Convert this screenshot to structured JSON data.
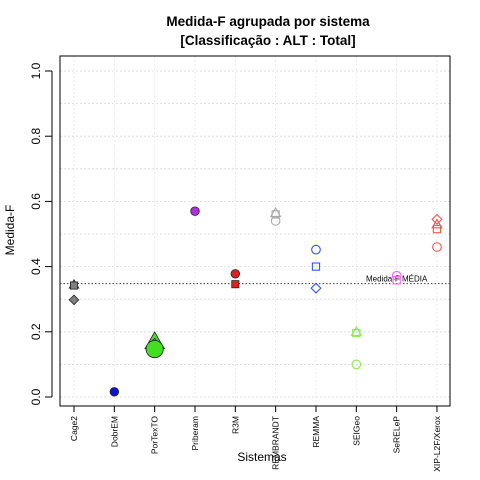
{
  "chart_data": {
    "type": "scatter",
    "title": "Medida-F agrupada por sistema",
    "subtitle": "[Classificação : ALT : Total]",
    "xlabel": "Sistemas",
    "ylabel": "Medida-F",
    "ylim": [
      0.0,
      1.0
    ],
    "yticks": [
      "0.0",
      "0.2",
      "0.4",
      "0.6",
      "0.8",
      "1.0"
    ],
    "grid": true,
    "categories": [
      "Cage2",
      "DobrEM",
      "PorTexTO",
      "Priberam",
      "R3M",
      "REMBRANDT",
      "REMMA",
      "SEIGeo",
      "SeRELeP",
      "XIP-L2F/Xerox"
    ],
    "reference_line": {
      "label": "Medida-F MÉDIA",
      "value": 0.348
    },
    "points": [
      {
        "category": "Cage2",
        "y": 0.345,
        "shape": "triangle",
        "color": "#808080",
        "filled": true
      },
      {
        "category": "Cage2",
        "y": 0.342,
        "shape": "square",
        "color": "#808080",
        "filled": true
      },
      {
        "category": "Cage2",
        "y": 0.298,
        "shape": "diamond",
        "color": "#808080",
        "filled": true
      },
      {
        "category": "DobrEM",
        "y": 0.016,
        "shape": "circle",
        "color": "#1010e0",
        "filled": true
      },
      {
        "category": "PorTexTO",
        "y": 0.17,
        "shape": "triangle",
        "color": "#44dd22",
        "filled": true,
        "large": true
      },
      {
        "category": "PorTexTO",
        "y": 0.15,
        "shape": "diamond",
        "color": "#44dd22",
        "filled": true,
        "large": true
      },
      {
        "category": "PorTexTO",
        "y": 0.147,
        "shape": "circle",
        "color": "#44dd22",
        "filled": true,
        "large": true
      },
      {
        "category": "Priberam",
        "y": 0.57,
        "shape": "circle",
        "color": "#b030e0",
        "filled": true
      },
      {
        "category": "R3M",
        "y": 0.378,
        "shape": "circle",
        "color": "#dd2222",
        "filled": true
      },
      {
        "category": "R3M",
        "y": 0.346,
        "shape": "square",
        "color": "#dd2222",
        "filled": true
      },
      {
        "category": "REMBRANDT",
        "y": 0.565,
        "shape": "triangle",
        "color": "#aaaaaa",
        "filled": false
      },
      {
        "category": "REMBRANDT",
        "y": 0.56,
        "shape": "square",
        "color": "#aaaaaa",
        "filled": false
      },
      {
        "category": "REMBRANDT",
        "y": 0.54,
        "shape": "circle",
        "color": "#aaaaaa",
        "filled": false
      },
      {
        "category": "REMMA",
        "y": 0.452,
        "shape": "circle",
        "color": "#3355ee",
        "filled": false
      },
      {
        "category": "REMMA",
        "y": 0.4,
        "shape": "square",
        "color": "#3355ee",
        "filled": false
      },
      {
        "category": "REMMA",
        "y": 0.334,
        "shape": "diamond",
        "color": "#3355ee",
        "filled": false
      },
      {
        "category": "SEIGeo",
        "y": 0.2,
        "shape": "triangle",
        "color": "#88ee44",
        "filled": false
      },
      {
        "category": "SEIGeo",
        "y": 0.196,
        "shape": "square",
        "color": "#88ee44",
        "filled": false
      },
      {
        "category": "SEIGeo",
        "y": 0.1,
        "shape": "circle",
        "color": "#88ee44",
        "filled": false
      },
      {
        "category": "SeRELeP",
        "y": 0.372,
        "shape": "circle",
        "color": "#ee66ee",
        "filled": false
      },
      {
        "category": "SeRELeP",
        "y": 0.358,
        "shape": "square",
        "color": "#ee66ee",
        "filled": false
      },
      {
        "category": "XIP-L2F/Xerox",
        "y": 0.545,
        "shape": "diamond",
        "color": "#ee5555",
        "filled": false
      },
      {
        "category": "XIP-L2F/Xerox",
        "y": 0.53,
        "shape": "triangle",
        "color": "#ee5555",
        "filled": false
      },
      {
        "category": "XIP-L2F/Xerox",
        "y": 0.515,
        "shape": "square",
        "color": "#ee5555",
        "filled": false
      },
      {
        "category": "XIP-L2F/Xerox",
        "y": 0.46,
        "shape": "circle",
        "color": "#ee5555",
        "filled": false
      }
    ]
  }
}
